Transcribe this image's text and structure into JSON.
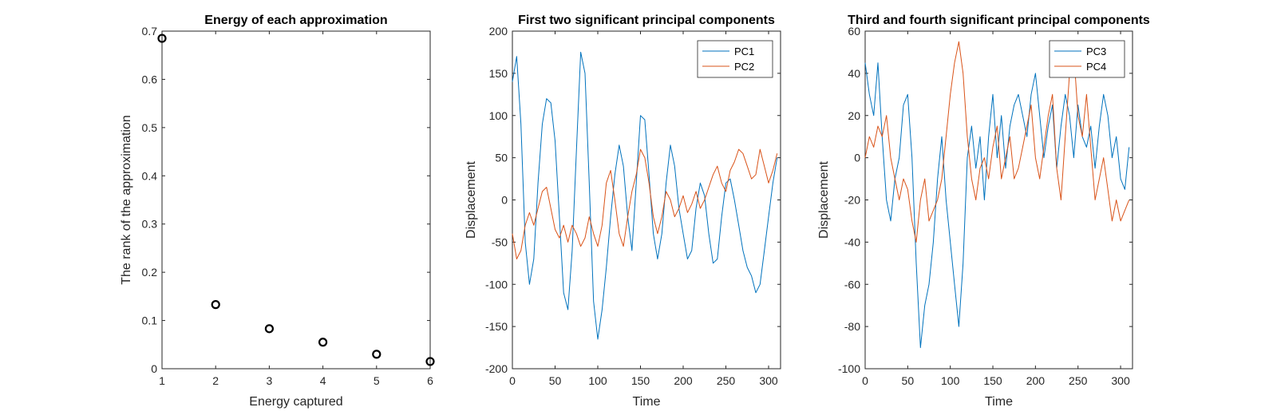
{
  "chart_data": [
    {
      "type": "scatter",
      "title": "Energy of each approximation",
      "xlabel": "Energy captured",
      "ylabel": "The rank of the approximation",
      "xlim": [
        1,
        6
      ],
      "ylim": [
        0,
        0.7
      ],
      "xticks": [
        1,
        2,
        3,
        4,
        5,
        6
      ],
      "yticks": [
        0,
        0.1,
        0.2,
        0.3,
        0.4,
        0.5,
        0.6,
        0.7
      ],
      "marker": "circle",
      "color": "#000000",
      "grid": false,
      "x": [
        1,
        2,
        3,
        4,
        5,
        6
      ],
      "y": [
        0.685,
        0.133,
        0.083,
        0.055,
        0.03,
        0.015
      ]
    },
    {
      "type": "line",
      "title": "First two significant principal components",
      "xlabel": "Time",
      "ylabel": "Displacement",
      "xlim": [
        0,
        314
      ],
      "ylim": [
        -200,
        200
      ],
      "xticks": [
        0,
        50,
        100,
        150,
        200,
        250,
        300
      ],
      "yticks": [
        -200,
        -150,
        -100,
        -50,
        0,
        50,
        100,
        150,
        200
      ],
      "grid": false,
      "legend_position": "top-right",
      "series": [
        {
          "name": "PC1",
          "color": "#0072BD",
          "x": [
            0,
            5,
            10,
            15,
            20,
            25,
            30,
            35,
            40,
            45,
            50,
            55,
            60,
            65,
            70,
            75,
            80,
            85,
            90,
            95,
            100,
            105,
            110,
            115,
            120,
            125,
            130,
            135,
            140,
            145,
            150,
            155,
            160,
            165,
            170,
            175,
            180,
            185,
            190,
            195,
            200,
            205,
            210,
            215,
            220,
            225,
            230,
            235,
            240,
            245,
            250,
            255,
            260,
            265,
            270,
            275,
            280,
            285,
            290,
            295,
            300,
            305,
            310
          ],
          "y": [
            140,
            170,
            90,
            -50,
            -100,
            -70,
            20,
            90,
            120,
            115,
            70,
            -20,
            -110,
            -130,
            -60,
            60,
            175,
            150,
            20,
            -120,
            -165,
            -130,
            -80,
            -20,
            30,
            65,
            40,
            -20,
            -60,
            20,
            100,
            95,
            30,
            -40,
            -70,
            -40,
            20,
            65,
            40,
            -10,
            -40,
            -70,
            -60,
            -10,
            20,
            5,
            -40,
            -75,
            -70,
            -20,
            20,
            25,
            0,
            -30,
            -60,
            -80,
            -90,
            -110,
            -100,
            -60,
            -20,
            20,
            50
          ]
        },
        {
          "name": "PC2",
          "color": "#D95319",
          "x": [
            0,
            5,
            10,
            15,
            20,
            25,
            30,
            35,
            40,
            45,
            50,
            55,
            60,
            65,
            70,
            75,
            80,
            85,
            90,
            95,
            100,
            105,
            110,
            115,
            120,
            125,
            130,
            135,
            140,
            145,
            150,
            155,
            160,
            165,
            170,
            175,
            180,
            185,
            190,
            195,
            200,
            205,
            210,
            215,
            220,
            225,
            230,
            235,
            240,
            245,
            250,
            255,
            260,
            265,
            270,
            275,
            280,
            285,
            290,
            295,
            300,
            305,
            310
          ],
          "y": [
            -40,
            -70,
            -60,
            -30,
            -15,
            -30,
            -10,
            10,
            15,
            -10,
            -35,
            -45,
            -30,
            -50,
            -30,
            -40,
            -55,
            -45,
            -20,
            -40,
            -55,
            -30,
            20,
            35,
            0,
            -40,
            -55,
            -20,
            10,
            30,
            60,
            50,
            20,
            -20,
            -40,
            -20,
            10,
            0,
            -20,
            -10,
            5,
            -15,
            -5,
            10,
            -10,
            0,
            15,
            30,
            40,
            20,
            10,
            35,
            45,
            60,
            55,
            40,
            25,
            30,
            60,
            40,
            20,
            35,
            55
          ]
        }
      ]
    },
    {
      "type": "line",
      "title": "Third and fourth significant principal components",
      "xlabel": "Time",
      "ylabel": "Displacement",
      "xlim": [
        0,
        314
      ],
      "ylim": [
        -100,
        60
      ],
      "xticks": [
        0,
        50,
        100,
        150,
        200,
        250,
        300
      ],
      "yticks": [
        -100,
        -80,
        -60,
        -40,
        -20,
        0,
        20,
        40,
        60
      ],
      "grid": false,
      "legend_position": "top-right",
      "series": [
        {
          "name": "PC3",
          "color": "#0072BD",
          "x": [
            0,
            5,
            10,
            15,
            20,
            25,
            30,
            35,
            40,
            45,
            50,
            55,
            60,
            65,
            70,
            75,
            80,
            85,
            90,
            95,
            100,
            105,
            110,
            115,
            120,
            125,
            130,
            135,
            140,
            145,
            150,
            155,
            160,
            165,
            170,
            175,
            180,
            185,
            190,
            195,
            200,
            205,
            210,
            215,
            220,
            225,
            230,
            235,
            240,
            245,
            250,
            255,
            260,
            265,
            270,
            275,
            280,
            285,
            290,
            295,
            300,
            305,
            310
          ],
          "y": [
            45,
            30,
            20,
            45,
            10,
            -20,
            -30,
            -10,
            0,
            25,
            30,
            0,
            -50,
            -90,
            -70,
            -60,
            -40,
            -10,
            10,
            -20,
            -40,
            -60,
            -80,
            -50,
            0,
            15,
            -5,
            10,
            -20,
            10,
            30,
            0,
            20,
            -5,
            15,
            25,
            30,
            20,
            10,
            30,
            40,
            20,
            0,
            15,
            25,
            -5,
            15,
            30,
            20,
            0,
            25,
            10,
            5,
            15,
            -5,
            15,
            30,
            20,
            0,
            10,
            -10,
            -15,
            5
          ]
        },
        {
          "name": "PC4",
          "color": "#D95319",
          "x": [
            0,
            5,
            10,
            15,
            20,
            25,
            30,
            35,
            40,
            45,
            50,
            55,
            60,
            65,
            70,
            75,
            80,
            85,
            90,
            95,
            100,
            105,
            110,
            115,
            120,
            125,
            130,
            135,
            140,
            145,
            150,
            155,
            160,
            165,
            170,
            175,
            180,
            185,
            190,
            195,
            200,
            205,
            210,
            215,
            220,
            225,
            230,
            235,
            240,
            245,
            250,
            255,
            260,
            265,
            270,
            275,
            280,
            285,
            290,
            295,
            300,
            305,
            310
          ],
          "y": [
            0,
            10,
            5,
            15,
            10,
            20,
            0,
            -10,
            -20,
            -10,
            -15,
            -30,
            -40,
            -20,
            -10,
            -30,
            -25,
            -20,
            -10,
            10,
            30,
            45,
            55,
            40,
            10,
            -10,
            -20,
            -5,
            0,
            -10,
            5,
            15,
            -10,
            0,
            10,
            -10,
            -5,
            5,
            15,
            25,
            0,
            -10,
            5,
            20,
            30,
            -5,
            -20,
            10,
            40,
            50,
            20,
            10,
            30,
            5,
            -20,
            -10,
            0,
            -15,
            -30,
            -20,
            -30,
            -25,
            -20
          ]
        }
      ]
    }
  ]
}
